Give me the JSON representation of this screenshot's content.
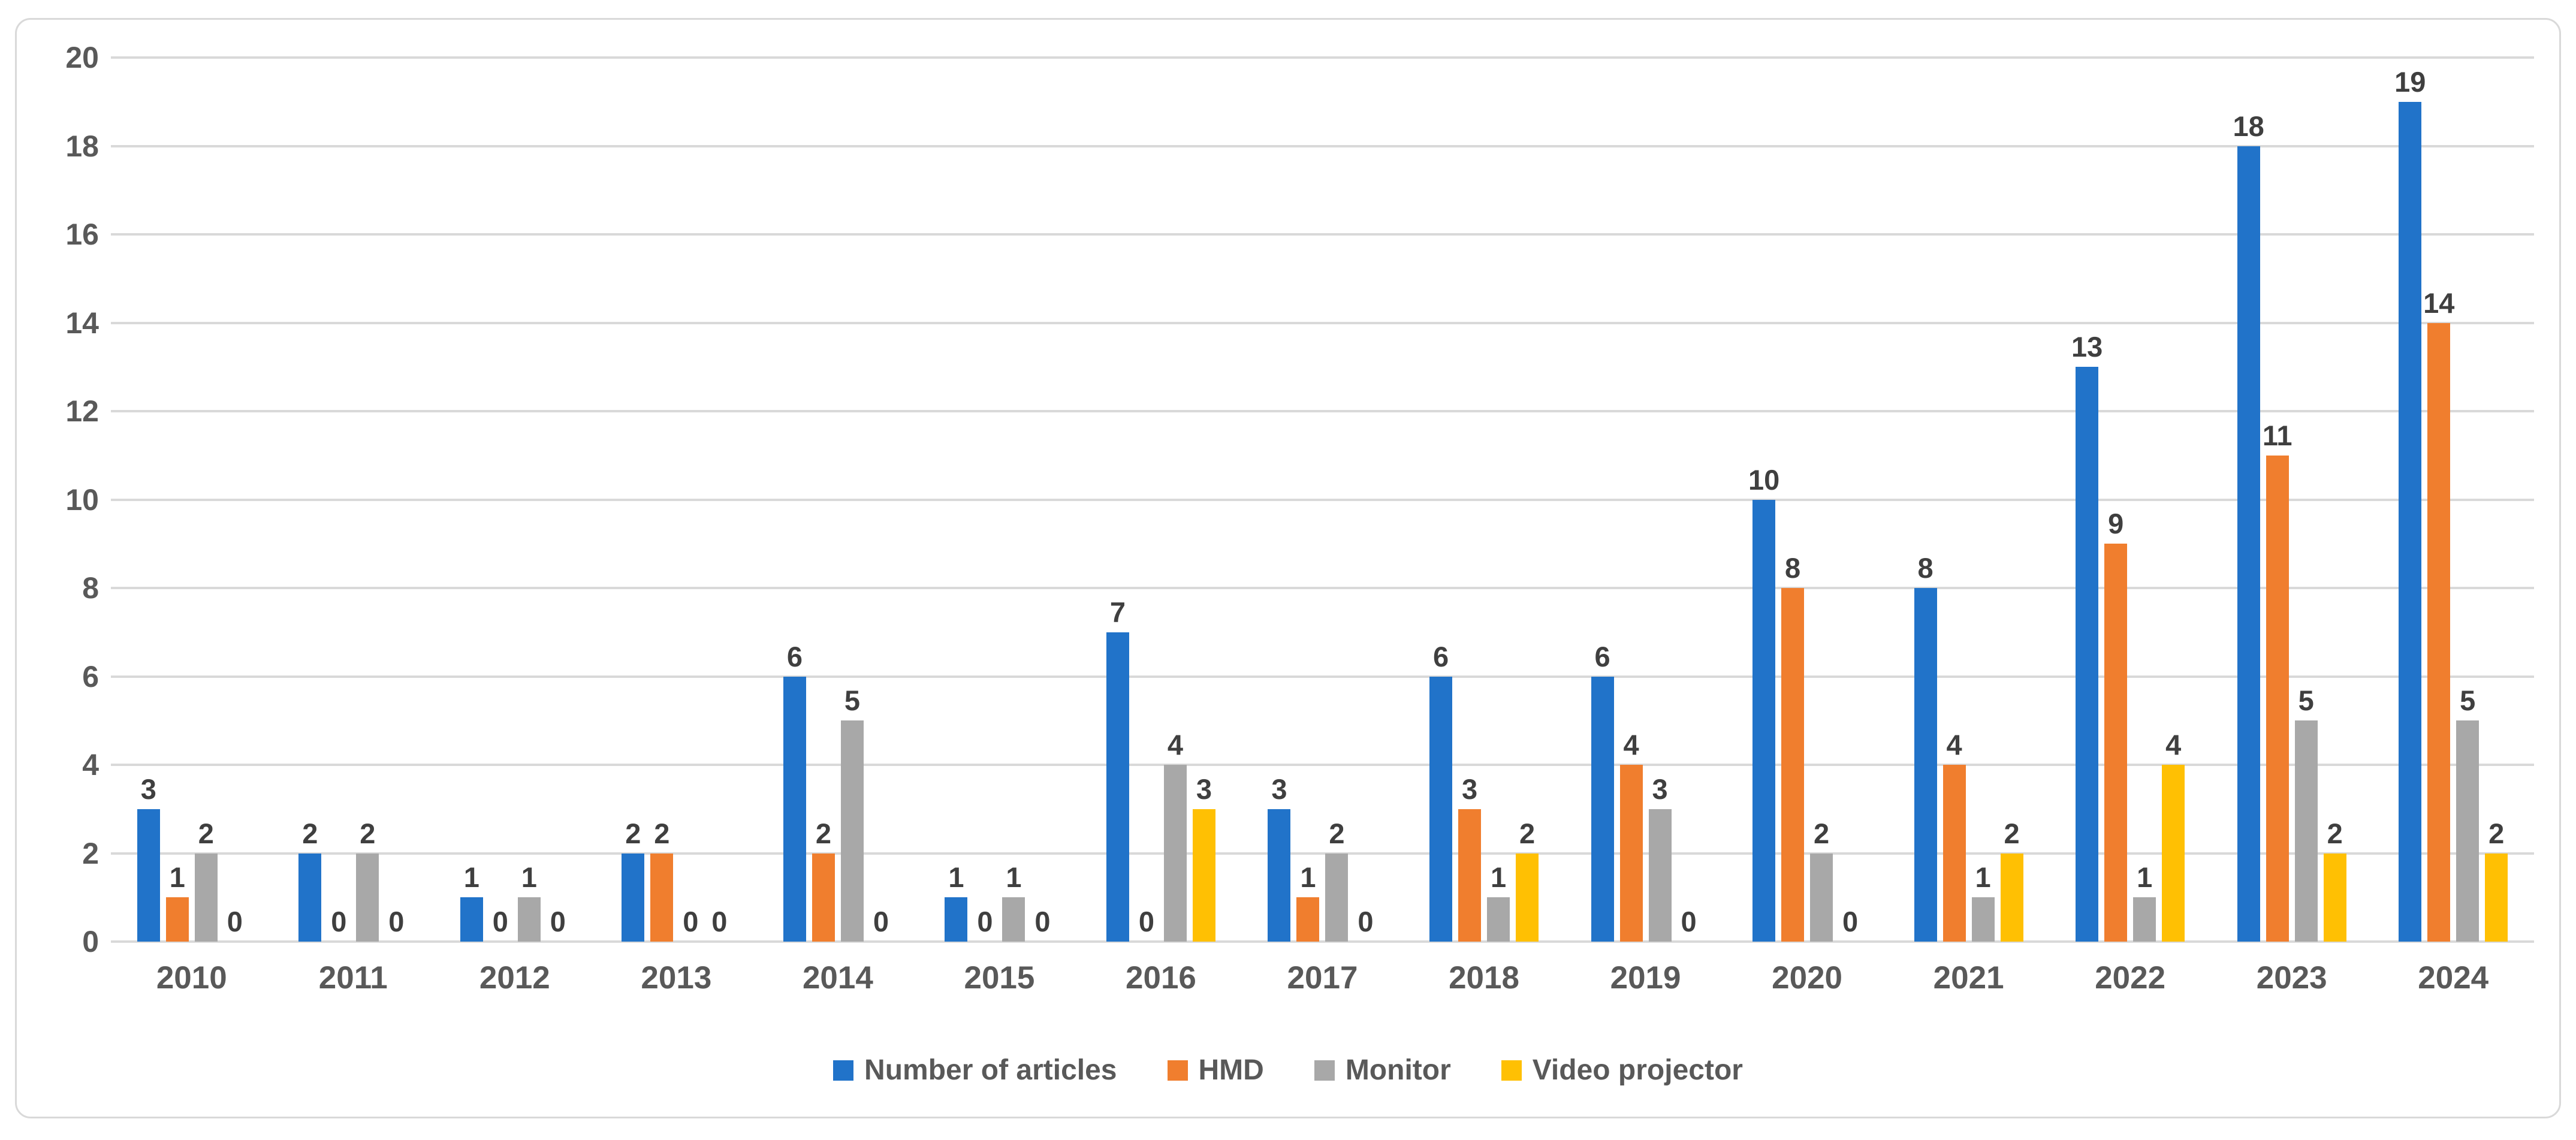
{
  "chart_data": {
    "type": "bar",
    "title": "",
    "xlabel": "",
    "ylabel": "",
    "categories": [
      "2010",
      "2011",
      "2012",
      "2013",
      "2014",
      "2015",
      "2016",
      "2017",
      "2018",
      "2019",
      "2020",
      "2021",
      "2022",
      "2023",
      "2024"
    ],
    "series": [
      {
        "name": "Number of articles",
        "color": "#2173C9",
        "values": [
          3,
          2,
          1,
          2,
          6,
          1,
          7,
          3,
          6,
          6,
          10,
          8,
          13,
          18,
          19
        ]
      },
      {
        "name": "HMD",
        "color": "#F07E2E",
        "values": [
          1,
          0,
          0,
          2,
          2,
          0,
          0,
          1,
          3,
          4,
          8,
          4,
          9,
          11,
          14
        ]
      },
      {
        "name": "Monitor",
        "color": "#A8A8A8",
        "values": [
          2,
          2,
          1,
          0,
          5,
          1,
          4,
          2,
          1,
          3,
          2,
          1,
          1,
          5,
          5
        ]
      },
      {
        "name": "Video projector",
        "color": "#FFC003",
        "values": [
          0,
          0,
          0,
          0,
          0,
          0,
          3,
          0,
          2,
          0,
          0,
          2,
          4,
          2,
          2
        ]
      }
    ],
    "ylim": [
      0,
      20
    ],
    "y_ticks": [
      "0",
      "2",
      "4",
      "6",
      "8",
      "10",
      "12",
      "14",
      "16",
      "18",
      "20"
    ],
    "grid": true,
    "value_labels": true,
    "legend_position": "bottom"
  },
  "colors": {
    "background": "#FFFFFF",
    "grid": "#D9D9D9",
    "frame_border": "#D9D9D9",
    "axis_text": "#595959",
    "data_label_text": "#3F3F3F"
  }
}
